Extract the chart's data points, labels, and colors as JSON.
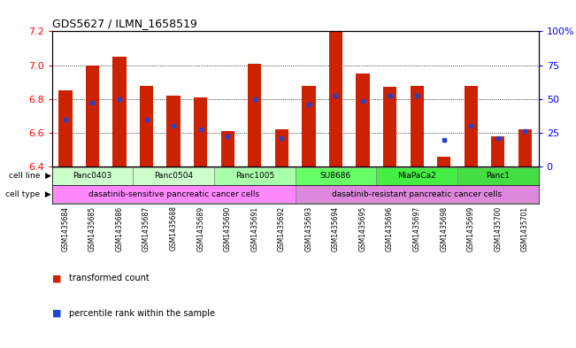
{
  "title": "GDS5627 / ILMN_1658519",
  "samples": [
    "GSM1435684",
    "GSM1435685",
    "GSM1435686",
    "GSM1435687",
    "GSM1435688",
    "GSM1435689",
    "GSM1435690",
    "GSM1435691",
    "GSM1435692",
    "GSM1435693",
    "GSM1435694",
    "GSM1435695",
    "GSM1435696",
    "GSM1435697",
    "GSM1435698",
    "GSM1435699",
    "GSM1435700",
    "GSM1435701"
  ],
  "bar_values": [
    6.85,
    7.0,
    7.05,
    6.88,
    6.82,
    6.81,
    6.61,
    7.01,
    6.62,
    6.88,
    7.2,
    6.95,
    6.87,
    6.88,
    6.46,
    6.88,
    6.58,
    6.62
  ],
  "percentile_values": [
    6.68,
    6.78,
    6.8,
    6.68,
    6.64,
    6.62,
    6.58,
    6.8,
    6.57,
    6.77,
    6.82,
    6.79,
    6.82,
    6.82,
    6.56,
    6.64,
    6.57,
    6.61
  ],
  "ylim_left": [
    6.4,
    7.2
  ],
  "ylim_right": [
    0,
    100
  ],
  "yticks_left": [
    6.4,
    6.6,
    6.8,
    7.0,
    7.2
  ],
  "yticks_right": [
    0,
    25,
    50,
    75,
    100
  ],
  "bar_color": "#cc2200",
  "dot_color": "#2244cc",
  "bar_bottom": 6.4,
  "cell_lines": [
    {
      "label": "Panc0403",
      "start": 0,
      "end": 3,
      "color": "#ccffcc"
    },
    {
      "label": "Panc0504",
      "start": 3,
      "end": 6,
      "color": "#ccffcc"
    },
    {
      "label": "Panc1005",
      "start": 6,
      "end": 9,
      "color": "#aaffaa"
    },
    {
      "label": "SU8686",
      "start": 9,
      "end": 12,
      "color": "#66ff66"
    },
    {
      "label": "MiaPaCa2",
      "start": 12,
      "end": 15,
      "color": "#44ee44"
    },
    {
      "label": "Panc1",
      "start": 15,
      "end": 18,
      "color": "#44dd44"
    }
  ],
  "cell_type_sensitive": {
    "label": "dasatinib-sensitive pancreatic cancer cells",
    "start": 0,
    "end": 9,
    "color": "#ff88ff"
  },
  "cell_type_resistant": {
    "label": "dasatinib-resistant pancreatic cancer cells",
    "start": 9,
    "end": 18,
    "color": "#dd88dd"
  },
  "bg_color": "#ffffff"
}
